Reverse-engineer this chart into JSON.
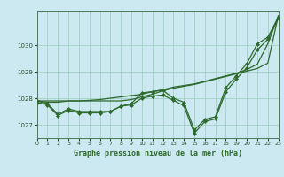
{
  "xlabel": "Graphe pression niveau de la mer (hPa)",
  "bg_color": "#cce8f0",
  "line_color": "#2d6a2d",
  "grid_color": "#99ccbb",
  "ylim": [
    1026.5,
    1031.3
  ],
  "xlim": [
    0,
    23
  ],
  "yticks": [
    1027,
    1028,
    1029,
    1030
  ],
  "xticks": [
    0,
    1,
    2,
    3,
    4,
    5,
    6,
    7,
    8,
    9,
    10,
    11,
    12,
    13,
    14,
    15,
    16,
    17,
    18,
    19,
    20,
    21,
    22,
    23
  ],
  "s1_no_marker": [
    1027.9,
    1027.85,
    1027.85,
    1027.9,
    1027.9,
    1027.92,
    1027.95,
    1028.0,
    1028.05,
    1028.1,
    1028.15,
    1028.25,
    1028.32,
    1028.42,
    1028.48,
    1028.54,
    1028.64,
    1028.74,
    1028.84,
    1028.94,
    1029.08,
    1029.28,
    1030.05,
    1031.1
  ],
  "s2_no_marker": [
    1027.9,
    1027.9,
    1027.9,
    1027.9,
    1027.9,
    1027.9,
    1027.9,
    1027.9,
    1027.9,
    1027.95,
    1028.05,
    1028.15,
    1028.28,
    1028.38,
    1028.45,
    1028.52,
    1028.62,
    1028.72,
    1028.82,
    1028.92,
    1029.02,
    1029.12,
    1029.32,
    1031.1
  ],
  "s3_marker": [
    1027.9,
    1027.8,
    1027.4,
    1027.6,
    1027.5,
    1027.5,
    1027.5,
    1027.5,
    1027.7,
    1027.8,
    1028.2,
    1028.25,
    1028.3,
    1028.0,
    1027.85,
    1026.8,
    1027.2,
    1027.3,
    1028.4,
    1028.85,
    1029.3,
    1030.05,
    1030.3,
    1031.05
  ],
  "s4_marker": [
    1027.85,
    1027.75,
    1027.35,
    1027.55,
    1027.45,
    1027.45,
    1027.45,
    1027.5,
    1027.7,
    1027.75,
    1028.0,
    1028.08,
    1028.12,
    1027.92,
    1027.72,
    1026.68,
    1027.12,
    1027.22,
    1028.25,
    1028.72,
    1029.15,
    1029.82,
    1030.22,
    1031.0
  ]
}
